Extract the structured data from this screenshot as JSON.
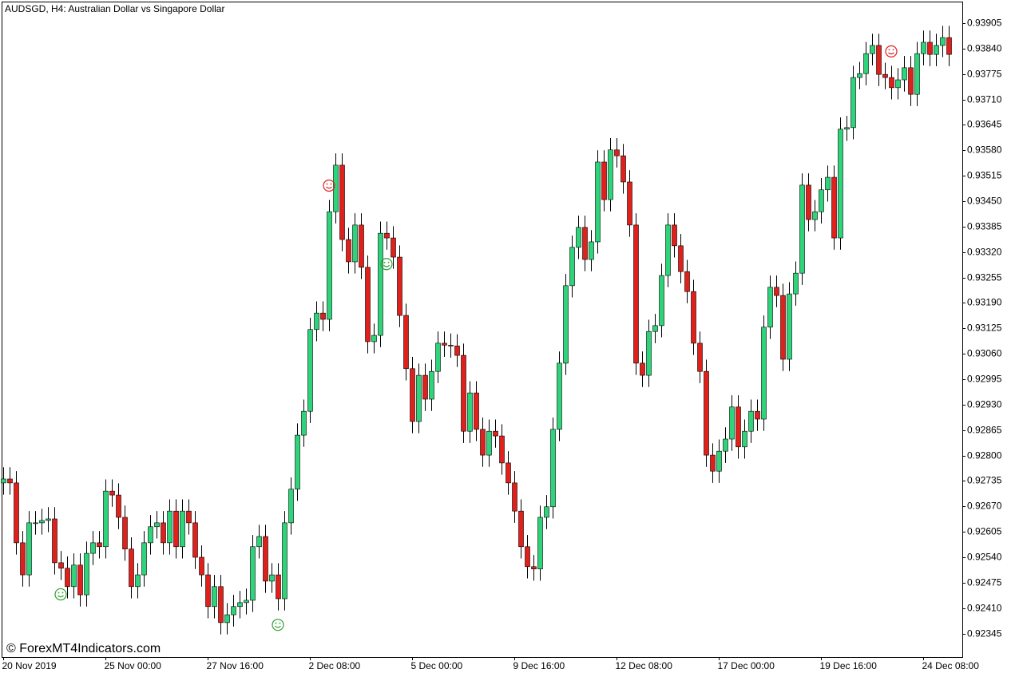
{
  "chart_data": {
    "type": "candlestick",
    "title": "AUDSGD, H4:  Australian Dollar vs Singapore Dollar",
    "watermark": "© ForexMT4Indicators.com",
    "bull_color": "#2ed47a",
    "bear_color": "#e0201b",
    "buy_color": "#2ca02c",
    "sell_color": "#e02020",
    "ylim": [
      0.92285,
      0.9396
    ],
    "yticks": [
      0.92345,
      {
        "value": 0.9241,
        "label": "0.92410"
      },
      0.92475,
      {
        "value": 0.9254,
        "label": "0.92540"
      },
      0.92605,
      {
        "value": 0.9267,
        "label": "0.92670"
      },
      0.92735,
      {
        "value": 0.928,
        "label": "0.92800"
      },
      0.92865,
      {
        "value": 0.9293,
        "label": "0.92930"
      },
      0.92995,
      {
        "value": 0.9306,
        "label": "0.93060"
      },
      0.93125,
      {
        "value": 0.9319,
        "label": "0.93190"
      },
      0.93255,
      {
        "value": 0.9332,
        "label": "0.93320"
      },
      0.93385,
      {
        "value": 0.9345,
        "label": "0.93450"
      },
      0.93515,
      {
        "value": 0.9358,
        "label": "0.93580"
      },
      0.93645,
      {
        "value": 0.9371,
        "label": "0.93710"
      },
      0.93775,
      {
        "value": 0.9384,
        "label": "0.93840"
      },
      0.93905
    ],
    "categories": [
      "20 Nov 2019",
      null,
      null,
      null,
      null,
      null,
      null,
      null,
      null,
      null,
      null,
      null,
      null,
      null,
      null,
      null,
      "25 Nov 00:00",
      null,
      null,
      null,
      null,
      null,
      null,
      null,
      null,
      null,
      null,
      null,
      null,
      null,
      null,
      null,
      "27 Nov 16:00",
      null,
      null,
      null,
      null,
      null,
      null,
      null,
      null,
      null,
      null,
      null,
      null,
      null,
      null,
      null,
      "2 Dec 08:00",
      null,
      null,
      null,
      null,
      null,
      null,
      null,
      null,
      null,
      null,
      null,
      null,
      null,
      null,
      null,
      "5 Dec 00:00",
      null,
      null,
      null,
      null,
      null,
      null,
      null,
      null,
      null,
      null,
      null,
      null,
      null,
      null,
      null,
      "9 Dec 16:00",
      null,
      null,
      null,
      null,
      null,
      null,
      null,
      null,
      null,
      null,
      null,
      null,
      null,
      null,
      null,
      "12 Dec 08:00",
      null,
      null,
      null,
      null,
      null,
      null,
      null,
      null,
      null,
      null,
      null,
      null,
      null,
      null,
      null,
      "17 Dec 00:00",
      null,
      null,
      null,
      null,
      null,
      null,
      null,
      null,
      null,
      null,
      null,
      null,
      null,
      null,
      null,
      "19 Dec 16:00",
      null,
      null,
      null,
      null,
      null,
      null,
      null,
      null,
      null,
      null,
      null,
      null,
      null,
      null,
      null,
      "24 Dec 08:00",
      null,
      null,
      null,
      null
    ],
    "open": [
      0.9273,
      0.9274,
      0.9273,
      0.92577,
      0.92495,
      0.92628,
      0.92628,
      0.92634,
      0.92638,
      0.92526,
      0.92512,
      0.92465,
      0.9252,
      0.92444,
      0.9255,
      0.92577,
      0.92567,
      0.92709,
      0.92699,
      0.92642,
      0.92561,
      0.92465,
      0.92495,
      0.92577,
      0.92618,
      0.92628,
      0.92577,
      0.92658,
      0.92567,
      0.92658,
      0.92628,
      0.9254,
      0.92495,
      0.92414,
      0.92465,
      0.92373,
      0.92393,
      0.92414,
      0.92424,
      0.9243,
      0.92567,
      0.92593,
      0.92479,
      0.92495,
      0.92434,
      0.92628,
      0.92714,
      0.92852,
      0.92913,
      0.93122,
      0.93164,
      0.93148,
      0.93423,
      0.93542,
      0.93352,
      0.93295,
      0.93389,
      0.93281,
      0.93091,
      0.93107,
      0.93368,
      0.93356,
      0.93307,
      0.93158,
      0.93022,
      0.92887,
      0.93005,
      0.92944,
      0.93015,
      0.93087,
      0.93082,
      0.9308,
      0.93056,
      0.92862,
      0.9296,
      0.92867,
      0.92801,
      0.92862,
      0.9285,
      0.92781,
      0.9273,
      0.92658,
      0.92567,
      0.92516,
      0.9251,
      0.92642,
      0.92669,
      0.92867,
      0.93036,
      0.93234,
      0.93332,
      0.93383,
      0.93301,
      0.93346,
      0.9355,
      0.93454,
      0.93581,
      0.93566,
      0.93499,
      0.93389,
      0.93036,
      0.93005,
      0.93117,
      0.93132,
      0.9326,
      0.93389,
      0.93336,
      0.9327,
      0.93219,
      0.93087,
      0.93015,
      0.92801,
      0.9276,
      0.92811,
      0.92842,
      0.92924,
      0.92822,
      0.92862,
      0.92913,
      0.92893,
      0.93128,
      0.9323,
      0.93209,
      0.93046,
      0.93213,
      0.93266,
      0.93491,
      0.93403,
      0.93423,
      0.93479,
      0.93511,
      0.93356,
      0.93634,
      0.93638,
      0.93766,
      0.93776,
      0.93827,
      0.93848,
      0.93774,
      0.93766,
      0.9374,
      0.9376,
      0.93791,
      0.93723,
      0.93827,
      0.93856,
      0.93825,
      0.93848,
      0.93868
    ],
    "high": [
      0.9277,
      0.9277,
      0.9276,
      0.92607,
      0.92658,
      0.92658,
      0.92664,
      0.92668,
      0.92668,
      0.92556,
      0.92542,
      0.9255,
      0.9255,
      0.9258,
      0.92607,
      0.92607,
      0.92739,
      0.92739,
      0.92729,
      0.92672,
      0.92591,
      0.92525,
      0.92607,
      0.92648,
      0.92658,
      0.92658,
      0.92688,
      0.92688,
      0.92688,
      0.92688,
      0.92658,
      0.9257,
      0.92525,
      0.92495,
      0.92495,
      0.92423,
      0.92444,
      0.92454,
      0.9246,
      0.92597,
      0.92623,
      0.92623,
      0.92525,
      0.92525,
      0.92658,
      0.92744,
      0.92882,
      0.92943,
      0.93152,
      0.93194,
      0.93194,
      0.93453,
      0.93572,
      0.93572,
      0.93382,
      0.93419,
      0.93419,
      0.93311,
      0.93137,
      0.93398,
      0.93398,
      0.93386,
      0.93337,
      0.93188,
      0.93052,
      0.93035,
      0.93035,
      0.93045,
      0.93117,
      0.93117,
      0.93112,
      0.9311,
      0.93086,
      0.9299,
      0.9299,
      0.92897,
      0.92892,
      0.92892,
      0.9288,
      0.92811,
      0.9276,
      0.92688,
      0.92597,
      0.92546,
      0.92672,
      0.92699,
      0.92897,
      0.93066,
      0.93264,
      0.93362,
      0.93413,
      0.93413,
      0.93376,
      0.9358,
      0.9358,
      0.93611,
      0.93611,
      0.93596,
      0.93529,
      0.93419,
      0.93066,
      0.93147,
      0.93162,
      0.9329,
      0.93419,
      0.93419,
      0.93366,
      0.933,
      0.93249,
      0.93117,
      0.93045,
      0.92831,
      0.92841,
      0.92872,
      0.92954,
      0.92954,
      0.92892,
      0.92943,
      0.92943,
      0.93158,
      0.9326,
      0.9326,
      0.93239,
      0.93243,
      0.93296,
      0.93521,
      0.93521,
      0.93453,
      0.93509,
      0.93541,
      0.93541,
      0.93664,
      0.93668,
      0.93796,
      0.93806,
      0.93857,
      0.93878,
      0.93878,
      0.93804,
      0.93796,
      0.9379,
      0.93821,
      0.93821,
      0.93857,
      0.93886,
      0.93886,
      0.93878,
      0.93898,
      0.93898
    ],
    "low": [
      0.927,
      0.927,
      0.92547,
      0.92465,
      0.92465,
      0.92598,
      0.92598,
      0.92604,
      0.92496,
      0.92482,
      0.92435,
      0.92435,
      0.92414,
      0.92414,
      0.9252,
      0.92537,
      0.92537,
      0.92669,
      0.92612,
      0.92531,
      0.92435,
      0.92435,
      0.92465,
      0.92547,
      0.92588,
      0.92547,
      0.92547,
      0.92537,
      0.92537,
      0.92598,
      0.9251,
      0.92465,
      0.92384,
      0.92384,
      0.92343,
      0.92343,
      0.92363,
      0.92384,
      0.92394,
      0.924,
      0.92537,
      0.92449,
      0.92449,
      0.92404,
      0.92404,
      0.92598,
      0.92684,
      0.92822,
      0.92883,
      0.93092,
      0.93118,
      0.93118,
      0.93393,
      0.93322,
      0.93265,
      0.93265,
      0.93251,
      0.93061,
      0.93061,
      0.93077,
      0.93326,
      0.93277,
      0.93128,
      0.92992,
      0.92857,
      0.92857,
      0.92914,
      0.92914,
      0.92985,
      0.93052,
      0.9305,
      0.93026,
      0.92832,
      0.92832,
      0.92837,
      0.92771,
      0.92771,
      0.9282,
      0.92751,
      0.927,
      0.92628,
      0.92537,
      0.92486,
      0.9248,
      0.9248,
      0.92612,
      0.92639,
      0.92837,
      0.93006,
      0.93204,
      0.93302,
      0.93271,
      0.93271,
      0.93316,
      0.93424,
      0.93424,
      0.93536,
      0.93469,
      0.93359,
      0.93006,
      0.92975,
      0.92975,
      0.93087,
      0.93102,
      0.9323,
      0.93306,
      0.9324,
      0.93189,
      0.93057,
      0.92985,
      0.92771,
      0.9273,
      0.9273,
      0.92781,
      0.92812,
      0.92792,
      0.92792,
      0.92832,
      0.92863,
      0.92863,
      0.93098,
      0.93179,
      0.93016,
      0.93016,
      0.93183,
      0.93236,
      0.93373,
      0.93373,
      0.93393,
      0.93449,
      0.93326,
      0.93326,
      0.93604,
      0.93608,
      0.93736,
      0.93746,
      0.93797,
      0.93744,
      0.93736,
      0.9371,
      0.9371,
      0.9373,
      0.93693,
      0.93693,
      0.93797,
      0.93795,
      0.93795,
      0.93818,
      0.93795
    ],
    "close": [
      0.9274,
      0.9273,
      0.92577,
      0.92495,
      0.92628,
      0.92628,
      0.92634,
      0.92638,
      0.92526,
      0.92512,
      0.92465,
      0.9252,
      0.92444,
      0.9255,
      0.92577,
      0.92567,
      0.92709,
      0.92699,
      0.92642,
      0.92561,
      0.92465,
      0.92495,
      0.92577,
      0.92618,
      0.92628,
      0.92577,
      0.92658,
      0.92567,
      0.92658,
      0.92628,
      0.9254,
      0.92495,
      0.92414,
      0.92465,
      0.92373,
      0.92393,
      0.92414,
      0.92424,
      0.9243,
      0.92567,
      0.92593,
      0.92479,
      0.92495,
      0.92434,
      0.92628,
      0.92714,
      0.92852,
      0.92913,
      0.93122,
      0.93164,
      0.93148,
      0.93423,
      0.93542,
      0.93352,
      0.93295,
      0.93389,
      0.93281,
      0.93091,
      0.93107,
      0.93368,
      0.93356,
      0.93307,
      0.93158,
      0.93022,
      0.92887,
      0.93005,
      0.92944,
      0.93015,
      0.93087,
      0.93082,
      0.9308,
      0.93056,
      0.92862,
      0.9296,
      0.92867,
      0.92801,
      0.92862,
      0.9285,
      0.92781,
      0.9273,
      0.92658,
      0.92567,
      0.92516,
      0.9251,
      0.92642,
      0.92669,
      0.92867,
      0.93036,
      0.93234,
      0.93332,
      0.93383,
      0.93301,
      0.93346,
      0.9355,
      0.93454,
      0.93581,
      0.93566,
      0.93499,
      0.93389,
      0.93036,
      0.93005,
      0.93117,
      0.93132,
      0.9326,
      0.93389,
      0.93336,
      0.9327,
      0.93219,
      0.93087,
      0.93015,
      0.92801,
      0.9276,
      0.92811,
      0.92842,
      0.92924,
      0.92822,
      0.92862,
      0.92913,
      0.92893,
      0.93128,
      0.9323,
      0.93209,
      0.93046,
      0.93213,
      0.93266,
      0.93491,
      0.93403,
      0.93423,
      0.93479,
      0.93511,
      0.93356,
      0.93634,
      0.93638,
      0.93766,
      0.93776,
      0.93827,
      0.93848,
      0.93774,
      0.93766,
      0.9374,
      0.9376,
      0.93791,
      0.93723,
      0.93827,
      0.93856,
      0.93825,
      0.93848,
      0.93868,
      0.93825
    ],
    "buy_signals": [
      9,
      43,
      60
    ],
    "sell_signals": [
      51,
      139
    ]
  }
}
